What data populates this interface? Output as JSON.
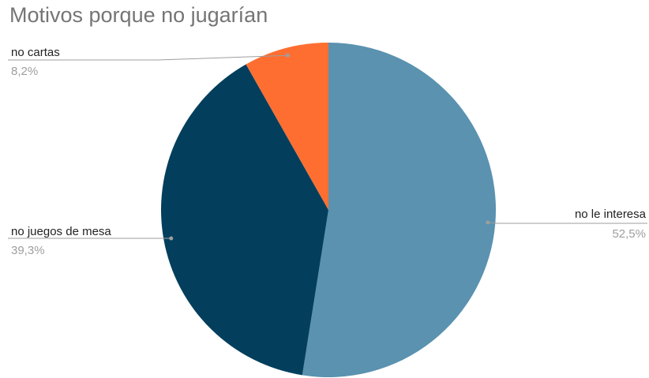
{
  "chart_data": {
    "type": "pie",
    "title": "Motivos porque no jugarían",
    "slices": [
      {
        "label": "no le interesa",
        "value": 52.5,
        "display": "52,5%",
        "color": "#5a92b0"
      },
      {
        "label": "no juegos de mesa",
        "value": 39.3,
        "display": "39,3%",
        "color": "#033f5c"
      },
      {
        "label": "no cartas",
        "value": 8.2,
        "display": "8,2%",
        "color": "#ff6e31"
      }
    ],
    "legend": "none",
    "label_style": "callout lines with name and percentage"
  },
  "colors": {
    "title": "#757575",
    "label_text": "#222222",
    "percent_text": "#9e9e9e",
    "leader_line": "#9e9e9e"
  }
}
